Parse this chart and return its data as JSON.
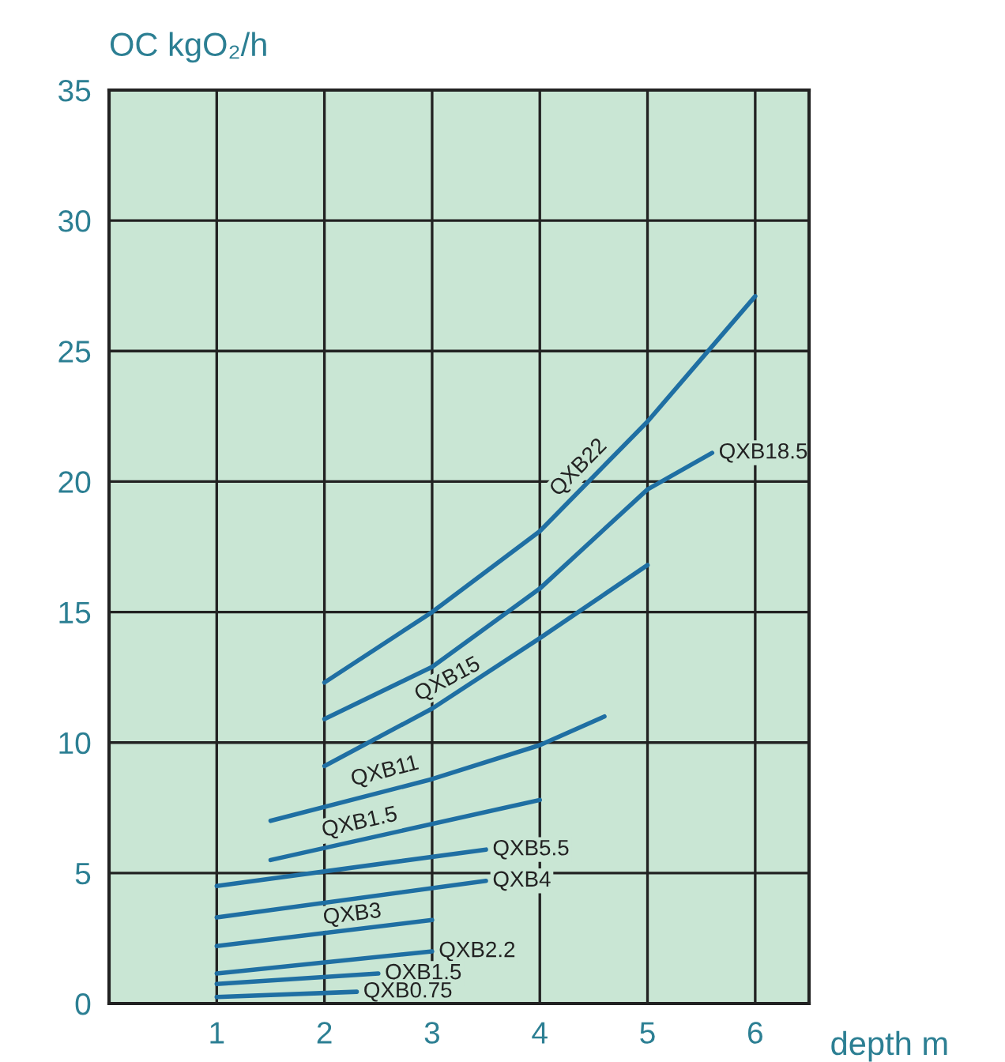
{
  "chart_data": {
    "type": "line",
    "xlabel": "depth m",
    "ylabel": "OC kgO₂/h",
    "xlim": [
      0,
      6.5
    ],
    "ylim": [
      0,
      35
    ],
    "xticks": [
      1,
      2,
      3,
      4,
      5,
      6
    ],
    "yticks": [
      0,
      5,
      10,
      15,
      20,
      25,
      30,
      35
    ],
    "grid": true,
    "legend": false,
    "marker": "none",
    "line_style": "solid",
    "series": [
      {
        "name": "QXB22",
        "color": "#1f6fa3",
        "x": [
          2,
          3,
          4,
          5,
          6
        ],
        "values": [
          12.3,
          15.0,
          18.1,
          22.3,
          27.1
        ]
      },
      {
        "name": "QXB18.5",
        "color": "#1f6fa3",
        "x": [
          2,
          3,
          4,
          5,
          5.6
        ],
        "values": [
          10.9,
          12.9,
          15.9,
          19.7,
          21.1
        ]
      },
      {
        "name": "QXB15",
        "color": "#1f6fa3",
        "x": [
          2,
          3,
          4,
          5
        ],
        "values": [
          9.1,
          11.3,
          14.0,
          16.8
        ]
      },
      {
        "name": "QXB11",
        "color": "#1f6fa3",
        "x": [
          1.5,
          3,
          4,
          4.6
        ],
        "values": [
          7.0,
          8.6,
          9.9,
          11.0
        ]
      },
      {
        "name": "QXB1.5",
        "color": "#1f6fa3",
        "x": [
          1.5,
          4
        ],
        "values": [
          5.5,
          7.8
        ]
      },
      {
        "name": "QXB5.5",
        "color": "#1f6fa3",
        "x": [
          1,
          3.5
        ],
        "values": [
          4.5,
          5.9
        ]
      },
      {
        "name": "QXB4",
        "color": "#1f6fa3",
        "x": [
          1,
          3.5
        ],
        "values": [
          3.3,
          4.7
        ]
      },
      {
        "name": "QXB3",
        "color": "#1f6fa3",
        "x": [
          1,
          3
        ],
        "values": [
          2.2,
          3.2
        ]
      },
      {
        "name": "QXB2.2",
        "color": "#1f6fa3",
        "x": [
          1,
          3
        ],
        "values": [
          1.15,
          2.0
        ]
      },
      {
        "name": "QXB1.5",
        "color": "#1f6fa3",
        "x": [
          1,
          2.5
        ],
        "values": [
          0.75,
          1.15
        ]
      },
      {
        "name": "QXB0.75",
        "color": "#1f6fa3",
        "x": [
          1,
          2.3
        ],
        "values": [
          0.25,
          0.45
        ]
      }
    ]
  }
}
